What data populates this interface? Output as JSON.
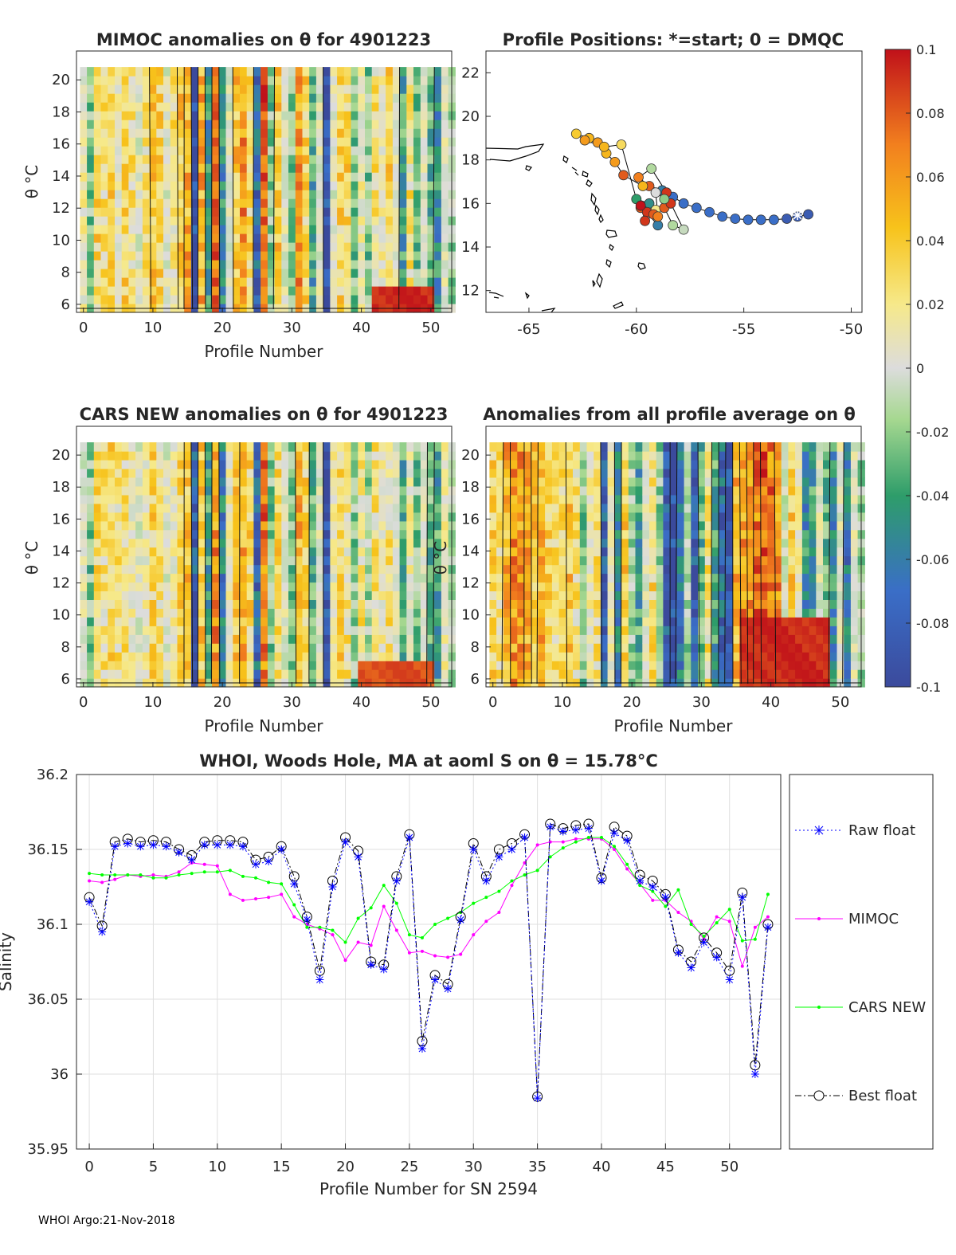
{
  "footer": "WHOI Argo:21-Nov-2018",
  "chart_data": [
    {
      "id": "mimoc",
      "type": "heatmap",
      "title": "MIMOC anomalies on θ  for 4901223",
      "xlabel": "Profile Number",
      "ylabel": "θ °C",
      "xlim": [
        -1,
        53
      ],
      "ylim": [
        5.5,
        21.8
      ],
      "xticks": [
        "0",
        "10",
        "20",
        "30",
        "40",
        "50"
      ],
      "yticks": [
        "6",
        "8",
        "10",
        "12",
        "14",
        "16",
        "18",
        "20"
      ],
      "column_anomaly": [
        0.01,
        -0.03,
        0.03,
        0.02,
        0.03,
        0.01,
        0.03,
        0.02,
        0.0,
        0.02,
        0.04,
        0.03,
        0.0,
        0.02,
        0.04,
        0.05,
        -0.1,
        0.05,
        -0.06,
        0.07,
        -0.06,
        0.0,
        0.04,
        0.06,
        0.03,
        -0.08,
        0.08,
        -0.03,
        0.04,
        0.0,
        -0.03,
        0.06,
        0.03,
        -0.05,
        0.0,
        -0.1,
        0.0,
        0.03,
        0.03,
        -0.03,
        0.01,
        -0.03,
        0.02,
        0.01,
        0.03,
        0.0,
        -0.05,
        0.02,
        -0.03,
        0.0,
        -0.04,
        -0.06,
        0.0,
        -0.02
      ],
      "warm_patch": {
        "x": [
          42,
          50
        ],
        "theta": [
          5.5,
          7.0
        ],
        "anomaly": 0.1
      }
    },
    {
      "id": "positions",
      "type": "scatter",
      "title": "Profile Positions: *=start; 0 = DMQC",
      "xlim": [
        -67,
        -49.5
      ],
      "ylim": [
        11,
        23
      ],
      "xticks": [
        "-65",
        "-60",
        "-55",
        "-50"
      ],
      "yticks": [
        "12",
        "14",
        "16",
        "18",
        "20",
        "22"
      ],
      "points": [
        {
          "lon": -52.0,
          "lat": 15.5,
          "a": -0.09
        },
        {
          "lon": -52.5,
          "lat": 15.4,
          "a": -0.09
        },
        {
          "lon": -53.0,
          "lat": 15.3,
          "a": -0.09
        },
        {
          "lon": -53.6,
          "lat": 15.25,
          "a": -0.08
        },
        {
          "lon": -54.2,
          "lat": 15.25,
          "a": -0.08
        },
        {
          "lon": -54.8,
          "lat": 15.25,
          "a": -0.08
        },
        {
          "lon": -55.4,
          "lat": 15.3,
          "a": -0.08
        },
        {
          "lon": -56.0,
          "lat": 15.4,
          "a": -0.08
        },
        {
          "lon": -56.6,
          "lat": 15.6,
          "a": -0.08
        },
        {
          "lon": -57.2,
          "lat": 15.8,
          "a": -0.08
        },
        {
          "lon": -57.8,
          "lat": 16.0,
          "a": -0.08
        },
        {
          "lon": -58.3,
          "lat": 16.3,
          "a": -0.08
        },
        {
          "lon": -58.8,
          "lat": 16.6,
          "a": -0.07
        },
        {
          "lon": -59.4,
          "lat": 16.8,
          "a": 0.08
        },
        {
          "lon": -59.9,
          "lat": 17.2,
          "a": 0.07
        },
        {
          "lon": -59.3,
          "lat": 17.6,
          "a": -0.02
        },
        {
          "lon": -58.6,
          "lat": 16.5,
          "a": 0.09
        },
        {
          "lon": -59.7,
          "lat": 16.8,
          "a": 0.05
        },
        {
          "lon": -60.6,
          "lat": 17.3,
          "a": 0.08
        },
        {
          "lon": -61.0,
          "lat": 17.9,
          "a": 0.06
        },
        {
          "lon": -61.4,
          "lat": 18.3,
          "a": 0.05
        },
        {
          "lon": -61.8,
          "lat": 18.8,
          "a": 0.06
        },
        {
          "lon": -62.2,
          "lat": 19.0,
          "a": 0.05
        },
        {
          "lon": -62.8,
          "lat": 19.2,
          "a": 0.04
        },
        {
          "lon": -62.4,
          "lat": 18.9,
          "a": 0.06
        },
        {
          "lon": -61.5,
          "lat": 18.6,
          "a": 0.05
        },
        {
          "lon": -60.7,
          "lat": 18.7,
          "a": 0.03
        },
        {
          "lon": -60.0,
          "lat": 16.2,
          "a": -0.05
        },
        {
          "lon": -59.4,
          "lat": 16.0,
          "a": -0.06
        },
        {
          "lon": -59.1,
          "lat": 15.7,
          "a": 0.02
        },
        {
          "lon": -59.8,
          "lat": 15.8,
          "a": 0.08
        },
        {
          "lon": -59.5,
          "lat": 15.6,
          "a": 0.09
        },
        {
          "lon": -59.2,
          "lat": 15.5,
          "a": 0.08
        },
        {
          "lon": -59.0,
          "lat": 15.0,
          "a": -0.07
        },
        {
          "lon": -59.8,
          "lat": 15.9,
          "a": 0.1
        },
        {
          "lon": -59.6,
          "lat": 15.2,
          "a": 0.09
        },
        {
          "lon": -58.7,
          "lat": 15.8,
          "a": 0.08
        },
        {
          "lon": -58.3,
          "lat": 15.0,
          "a": -0.02
        },
        {
          "lon": -57.8,
          "lat": 14.8,
          "a": -0.01
        },
        {
          "lon": -58.4,
          "lat": 16.0,
          "a": 0.09
        },
        {
          "lon": -59.1,
          "lat": 16.5,
          "a": 0.0
        },
        {
          "lon": -59.0,
          "lat": 15.4,
          "a": 0.07
        },
        {
          "lon": -58.7,
          "lat": 16.2,
          "a": -0.03
        }
      ]
    },
    {
      "id": "cars",
      "type": "heatmap",
      "title": "CARS NEW anomalies on θ for 4901223",
      "xlabel": "Profile Number",
      "ylabel": "θ °C",
      "xlim": [
        -1,
        53
      ],
      "ylim": [
        5.5,
        21.8
      ],
      "xticks": [
        "0",
        "10",
        "20",
        "30",
        "40",
        "50"
      ],
      "yticks": [
        "6",
        "8",
        "10",
        "12",
        "14",
        "16",
        "18",
        "20"
      ],
      "column_anomaly": [
        0.0,
        -0.03,
        0.03,
        0.02,
        0.03,
        0.02,
        0.02,
        0.01,
        0.0,
        0.01,
        0.03,
        0.02,
        0.0,
        0.01,
        0.03,
        0.04,
        -0.09,
        0.04,
        -0.05,
        0.06,
        -0.07,
        0.01,
        0.04,
        0.05,
        0.03,
        -0.08,
        0.07,
        -0.03,
        0.03,
        0.0,
        -0.03,
        0.05,
        0.03,
        -0.04,
        0.0,
        -0.1,
        0.01,
        0.03,
        0.02,
        -0.03,
        0.02,
        -0.02,
        0.02,
        0.01,
        0.02,
        0.0,
        -0.05,
        0.01,
        -0.03,
        0.0,
        -0.04,
        -0.05,
        0.01,
        -0.02
      ],
      "warm_patch": {
        "x": [
          40,
          50
        ],
        "theta": [
          5.5,
          7.0
        ],
        "anomaly": 0.09
      }
    },
    {
      "id": "allavg",
      "type": "heatmap",
      "title": "Anomalies from all profile average on θ",
      "xlabel": "Profile Number",
      "ylabel": "θ °C",
      "xlim": [
        -1,
        53
      ],
      "ylim": [
        5.5,
        21.8
      ],
      "xticks": [
        "0",
        "10",
        "20",
        "30",
        "40",
        "50"
      ],
      "yticks": [
        "6",
        "8",
        "10",
        "12",
        "14",
        "16",
        "18",
        "20"
      ],
      "column_anomaly": [
        0.03,
        0.02,
        0.05,
        0.06,
        0.06,
        0.05,
        0.04,
        0.05,
        0.03,
        0.02,
        0.03,
        0.04,
        0.02,
        -0.03,
        0.01,
        0.02,
        -0.09,
        0.01,
        -0.07,
        0.04,
        -0.02,
        -0.05,
        0.0,
        0.03,
        -0.03,
        -0.09,
        -0.1,
        -0.07,
        -0.02,
        -0.09,
        -0.04,
        0.02,
        -0.05,
        -0.08,
        -0.1,
        0.05,
        0.06,
        0.06,
        0.07,
        0.08,
        0.07,
        0.06,
        -0.01,
        0.04,
        0.01,
        -0.06,
        -0.05,
        0.0,
        -0.04,
        -0.06,
        0.0,
        -0.07,
        0.0,
        -0.02
      ],
      "warm_patch": {
        "x": [
          36,
          48
        ],
        "theta": [
          5.5,
          9.5
        ],
        "anomaly": 0.1
      }
    },
    {
      "id": "salinity",
      "type": "line",
      "title": "WHOI, Woods Hole, MA at aoml S on θ = 15.78°C",
      "xlabel": "Profile Number for SN 2594",
      "ylabel": "Salinity",
      "xlim": [
        -1,
        54
      ],
      "ylim": [
        35.95,
        36.2
      ],
      "xticks": [
        0,
        5,
        10,
        15,
        20,
        25,
        30,
        35,
        40,
        45,
        50
      ],
      "yticks": [
        "35.95",
        "36",
        "36.05",
        "36.1",
        "36.15",
        "36.2"
      ],
      "x": [
        0,
        1,
        2,
        3,
        4,
        5,
        6,
        7,
        8,
        9,
        10,
        11,
        12,
        13,
        14,
        15,
        16,
        17,
        18,
        19,
        20,
        21,
        22,
        23,
        24,
        25,
        26,
        27,
        28,
        29,
        30,
        31,
        32,
        33,
        34,
        35,
        36,
        37,
        38,
        39,
        40,
        41,
        42,
        43,
        44,
        45,
        46,
        47,
        48,
        49,
        50,
        51,
        52,
        53
      ],
      "series": [
        {
          "name": "Raw float",
          "color": "#0000ff",
          "dash": "2,3",
          "marker": "star",
          "values": [
            36.115,
            36.095,
            36.152,
            36.154,
            36.152,
            36.153,
            36.152,
            36.148,
            36.143,
            36.153,
            36.153,
            36.153,
            36.152,
            36.14,
            36.142,
            36.15,
            36.127,
            36.103,
            36.063,
            36.125,
            36.155,
            36.145,
            36.073,
            36.07,
            36.129,
            36.158,
            36.017,
            36.063,
            36.057,
            36.103,
            36.15,
            36.129,
            36.145,
            36.15,
            36.158,
            35.984,
            36.165,
            36.162,
            36.163,
            36.164,
            36.129,
            36.161,
            36.156,
            36.129,
            36.125,
            36.118,
            36.081,
            36.071,
            36.088,
            36.078,
            36.063,
            36.118,
            36.0,
            36.098
          ]
        },
        {
          "name": "MIMOC",
          "color": "#ff00ff",
          "dash": "",
          "marker": "dot",
          "values": [
            36.129,
            36.128,
            36.13,
            36.133,
            36.132,
            36.133,
            36.132,
            36.135,
            36.141,
            36.14,
            36.139,
            36.12,
            36.116,
            36.117,
            36.118,
            36.12,
            36.105,
            36.1,
            36.097,
            36.093,
            36.076,
            36.088,
            36.086,
            36.112,
            36.096,
            36.081,
            36.082,
            36.079,
            36.078,
            36.08,
            36.093,
            36.102,
            36.108,
            36.126,
            36.141,
            36.153,
            36.155,
            36.155,
            36.157,
            36.157,
            36.157,
            36.15,
            36.137,
            36.127,
            36.116,
            36.116,
            36.108,
            36.102,
            36.09,
            36.105,
            36.102,
            36.072,
            36.098,
            36.105
          ]
        },
        {
          "name": "CARS NEW",
          "color": "#00ff00",
          "dash": "",
          "marker": "dot",
          "values": [
            36.134,
            36.133,
            36.133,
            36.133,
            36.133,
            36.131,
            36.131,
            36.133,
            36.134,
            36.135,
            36.135,
            36.136,
            36.132,
            36.131,
            36.128,
            36.127,
            36.113,
            36.098,
            36.098,
            36.096,
            36.088,
            36.104,
            36.111,
            36.126,
            36.114,
            36.093,
            36.091,
            36.1,
            36.104,
            36.108,
            36.114,
            36.118,
            36.122,
            36.129,
            36.133,
            36.136,
            36.145,
            36.151,
            36.155,
            36.158,
            36.158,
            36.152,
            36.14,
            36.126,
            36.122,
            36.112,
            36.123,
            36.1,
            36.092,
            36.101,
            36.11,
            36.089,
            36.09,
            36.12
          ]
        },
        {
          "name": "Best float",
          "color": "#000000",
          "dash": "8,3,2,3",
          "marker": "circle",
          "values": [
            36.118,
            36.099,
            36.155,
            36.157,
            36.155,
            36.156,
            36.155,
            36.15,
            36.146,
            36.155,
            36.156,
            36.156,
            36.155,
            36.143,
            36.145,
            36.152,
            36.132,
            36.105,
            36.069,
            36.129,
            36.158,
            36.149,
            36.075,
            36.073,
            36.132,
            36.16,
            36.022,
            36.066,
            36.06,
            36.105,
            36.154,
            36.132,
            36.15,
            36.154,
            36.16,
            35.985,
            36.167,
            36.164,
            36.166,
            36.167,
            36.131,
            36.165,
            36.159,
            36.133,
            36.129,
            36.12,
            36.083,
            36.075,
            36.091,
            36.081,
            36.069,
            36.121,
            36.006,
            36.1
          ]
        }
      ],
      "legend_position": "right"
    }
  ],
  "colorbar": {
    "range": [
      -0.1,
      0.1
    ],
    "ticks": [
      "0.1",
      "0.08",
      "0.06",
      "0.04",
      "0.02",
      "0",
      "-0.02",
      "-0.04",
      "-0.06",
      "-0.08",
      "-0.1"
    ]
  }
}
